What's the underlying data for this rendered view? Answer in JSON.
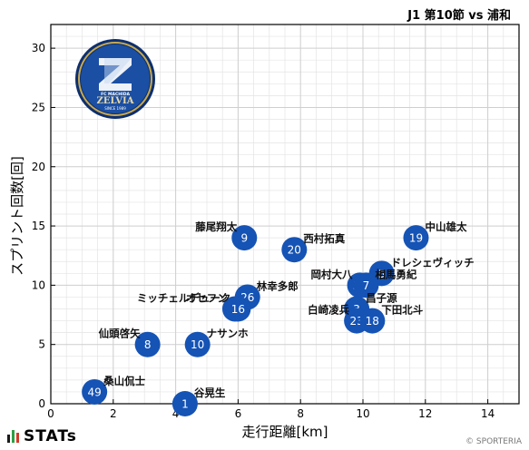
{
  "header": {
    "match": "J1 第10節 vs 浦和"
  },
  "brand": {
    "name": "STATs",
    "copyright": "© SPORTERIA"
  },
  "logo": {
    "club_text": "FC MACHIDA",
    "name": "ZELVIA",
    "since": "SINCE 1989"
  },
  "colors": {
    "marker": "#1553b5",
    "grid": "#cfcfcf",
    "logo_outer": "#0d2f6e",
    "logo_ring": "#c7a951"
  },
  "chart_data": {
    "type": "scatter",
    "xlabel": "走行距離[km]",
    "ylabel": "スプリント回数[回]",
    "xlim": [
      0,
      15
    ],
    "ylim": [
      0,
      32
    ],
    "xticks": [
      0,
      2,
      4,
      6,
      8,
      10,
      12,
      14
    ],
    "yticks": [
      0,
      5,
      10,
      15,
      20,
      25,
      30
    ],
    "grid": true,
    "points": [
      {
        "number": "9",
        "name": "藤尾翔太",
        "x": 6.2,
        "y": 14,
        "label_side": "left"
      },
      {
        "number": "20",
        "name": "西村拓真",
        "x": 7.8,
        "y": 13,
        "label_side": "right"
      },
      {
        "number": "19",
        "name": "中山雄太",
        "x": 11.7,
        "y": 14,
        "label_side": "right"
      },
      {
        "number": "5",
        "name": "ドレシェヴィッチ",
        "x": 10.6,
        "y": 11,
        "label_side": "right"
      },
      {
        "number": "50",
        "name": "岡村大八",
        "x": 9.9,
        "y": 10,
        "label_side": "left"
      },
      {
        "number": "7",
        "name": "相馬勇紀",
        "x": 10.1,
        "y": 10,
        "label_side": "right"
      },
      {
        "number": "26",
        "name": "林幸多郎",
        "x": 6.3,
        "y": 9,
        "label_side": "right"
      },
      {
        "number": "9",
        "name": "オセフン",
        "x": 5.9,
        "y": 8,
        "label_side": "left"
      },
      {
        "number": "16",
        "name": "ミッチェルデューク",
        "x": 6.0,
        "y": 8,
        "label_side": "left"
      },
      {
        "number": "3",
        "name": "昌子源",
        "x": 9.8,
        "y": 8,
        "label_side": "right"
      },
      {
        "number": "23",
        "name": "白崎凌兵",
        "x": 9.8,
        "y": 7,
        "label_side": "left"
      },
      {
        "number": "18",
        "name": "下田北斗",
        "x": 10.3,
        "y": 7,
        "label_side": "right"
      },
      {
        "number": "8",
        "name": "仙頭啓矢",
        "x": 3.1,
        "y": 5,
        "label_side": "left"
      },
      {
        "number": "10",
        "name": "ナサンホ",
        "x": 4.7,
        "y": 5,
        "label_side": "right"
      },
      {
        "number": "49",
        "name": "桑山侃士",
        "x": 1.4,
        "y": 1,
        "label_side": "right"
      },
      {
        "number": "1",
        "name": "谷晃生",
        "x": 4.3,
        "y": 0,
        "label_side": "right"
      }
    ]
  }
}
